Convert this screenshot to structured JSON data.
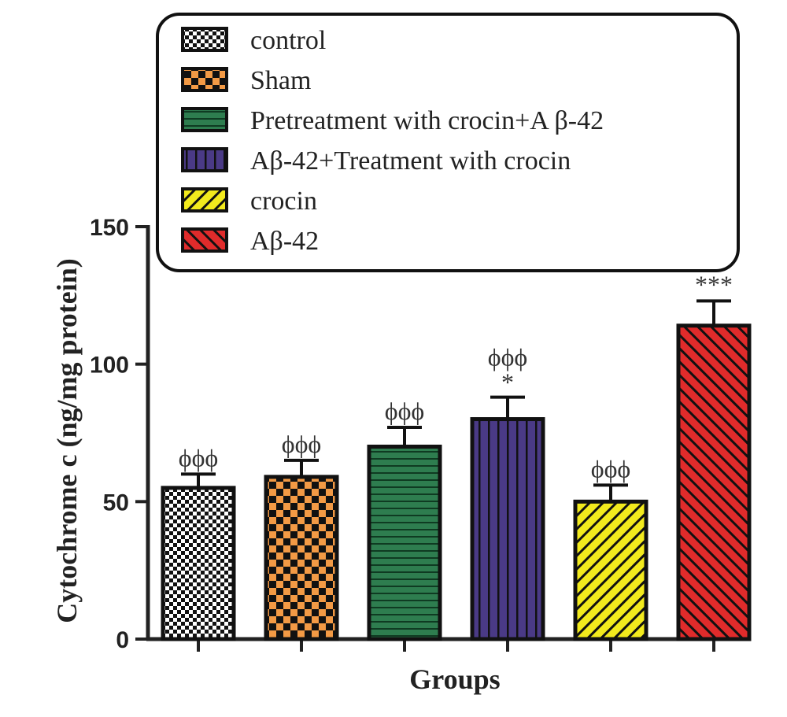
{
  "chart_data": {
    "type": "bar",
    "ylabel": "Cytochrome c (ng/mg protein)",
    "xlabel": "Groups",
    "ylim": [
      0,
      150
    ],
    "yticks": [
      0,
      50,
      100,
      150
    ],
    "legend_position": "top",
    "grid": false,
    "series": [
      {
        "name": "control",
        "value": 55,
        "error": 5,
        "annotation": "ϕϕϕ",
        "color": "#ffffff",
        "pattern": "checker-small",
        "pattern_color": "#111111"
      },
      {
        "name": "Sham",
        "value": 59,
        "error": 6,
        "annotation": "ϕϕϕ",
        "color": "#f39a45",
        "pattern": "checker-large",
        "pattern_color": "#111111"
      },
      {
        "name": "Pretreatment with crocin+A β-42",
        "value": 70,
        "error": 7,
        "annotation": "ϕϕϕ",
        "color": "#2e7d4f",
        "pattern": "horizontal",
        "pattern_color": "#cfe8d8"
      },
      {
        "name": "Aβ-42+Treatment with crocin",
        "value": 80,
        "error": 8,
        "annotation": "ϕϕϕ\n*",
        "color": "#4a3a86",
        "pattern": "vertical",
        "pattern_color": "#111111"
      },
      {
        "name": "crocin",
        "value": 50,
        "error": 6,
        "annotation": "ϕϕϕ",
        "color": "#f2ea1d",
        "pattern": "diagonal-up",
        "pattern_color": "#111111"
      },
      {
        "name": "Aβ-42",
        "value": 114,
        "error": 9,
        "annotation": "***",
        "color": "#e02b2b",
        "pattern": "diagonal-down",
        "pattern_color": "#111111"
      }
    ]
  }
}
